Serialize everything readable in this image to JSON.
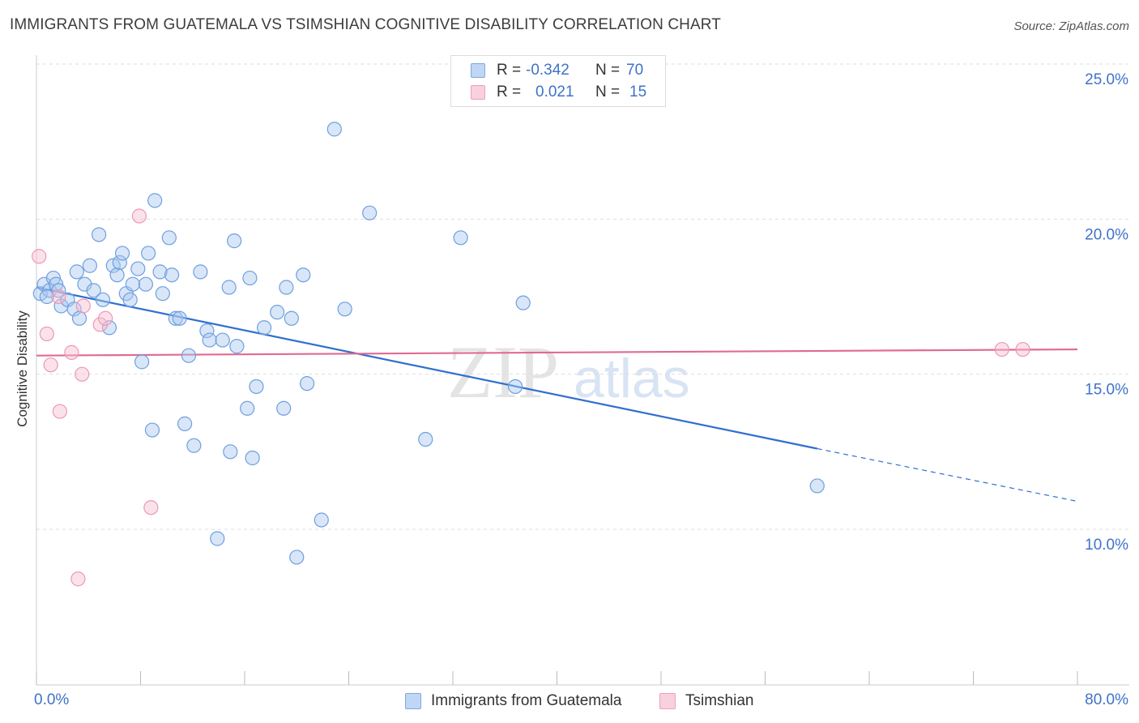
{
  "title": "IMMIGRANTS FROM GUATEMALA VS TSIMSHIAN COGNITIVE DISABILITY CORRELATION CHART",
  "source": "Source: ZipAtlas.com",
  "watermark": {
    "zip": "ZIP",
    "atlas": "atlas"
  },
  "colors": {
    "blue_fill": "#a9c7f0",
    "blue_stroke": "#6f9fdf",
    "blue_line": "#2f6fd0",
    "pink_fill": "#f7bfd0",
    "pink_stroke": "#ec98b4",
    "pink_line": "#e06b94",
    "axis_text": "#3f72c8",
    "grid": "#dddddd"
  },
  "stats": {
    "row1": {
      "r_label": "R =",
      "r_value": "-0.342",
      "n_label": "N =",
      "n_value": "70"
    },
    "row2": {
      "r_label": "R =",
      "r_value": "0.021",
      "n_label": "N =",
      "n_value": "15"
    }
  },
  "legend": {
    "series1": "Immigrants from Guatemala",
    "series2": "Tsimshian"
  },
  "chart_data": {
    "type": "scatter",
    "ylabel": "Cognitive Disability",
    "xlim": [
      0,
      80
    ],
    "ylim": [
      5,
      26.5
    ],
    "x_tick_labels": [
      {
        "value": 0,
        "label": "0.0%"
      },
      {
        "value": 80,
        "label": "80.0%"
      }
    ],
    "y_tick_labels": [
      {
        "value": 25,
        "label": "25.0%"
      },
      {
        "value": 20,
        "label": "20.0%"
      },
      {
        "value": 15,
        "label": "15.0%"
      },
      {
        "value": 10,
        "label": "10.0%"
      }
    ],
    "grid": true,
    "legend_position": "bottom",
    "series": [
      {
        "name": "Immigrants from Guatemala",
        "color": "#a9c7f0",
        "trend": {
          "x": [
            0,
            60
          ],
          "y": [
            17.8,
            12.6
          ],
          "dashed_to": [
            80,
            10.9
          ]
        },
        "points": [
          [
            0.3,
            17.6
          ],
          [
            0.6,
            17.9
          ],
          [
            1.0,
            17.7
          ],
          [
            1.3,
            18.1
          ],
          [
            1.5,
            17.9
          ],
          [
            1.9,
            17.2
          ],
          [
            2.4,
            17.4
          ],
          [
            2.9,
            17.1
          ],
          [
            3.3,
            16.8
          ],
          [
            3.7,
            17.9
          ],
          [
            4.1,
            18.5
          ],
          [
            4.4,
            17.7
          ],
          [
            4.8,
            19.5
          ],
          [
            5.1,
            17.4
          ],
          [
            5.6,
            16.5
          ],
          [
            5.9,
            18.5
          ],
          [
            6.2,
            18.2
          ],
          [
            6.4,
            18.6
          ],
          [
            6.6,
            18.9
          ],
          [
            6.9,
            17.6
          ],
          [
            7.2,
            17.4
          ],
          [
            7.4,
            17.9
          ],
          [
            7.8,
            18.4
          ],
          [
            8.1,
            15.4
          ],
          [
            8.4,
            17.9
          ],
          [
            8.6,
            18.9
          ],
          [
            8.9,
            13.2
          ],
          [
            9.1,
            20.6
          ],
          [
            9.5,
            18.3
          ],
          [
            9.7,
            17.6
          ],
          [
            10.2,
            19.4
          ],
          [
            10.4,
            18.2
          ],
          [
            10.7,
            16.8
          ],
          [
            11.0,
            16.8
          ],
          [
            11.4,
            13.4
          ],
          [
            11.7,
            15.6
          ],
          [
            12.1,
            12.7
          ],
          [
            12.6,
            18.3
          ],
          [
            13.1,
            16.4
          ],
          [
            13.3,
            16.1
          ],
          [
            13.9,
            9.7
          ],
          [
            14.3,
            16.1
          ],
          [
            14.8,
            17.8
          ],
          [
            14.9,
            12.5
          ],
          [
            15.2,
            19.3
          ],
          [
            15.4,
            15.9
          ],
          [
            16.2,
            13.9
          ],
          [
            16.4,
            18.1
          ],
          [
            16.6,
            12.3
          ],
          [
            16.9,
            14.6
          ],
          [
            17.5,
            16.5
          ],
          [
            18.5,
            17.0
          ],
          [
            19.0,
            13.9
          ],
          [
            19.2,
            17.8
          ],
          [
            19.6,
            16.8
          ],
          [
            20.0,
            9.1
          ],
          [
            20.5,
            18.2
          ],
          [
            20.8,
            14.7
          ],
          [
            21.9,
            10.3
          ],
          [
            22.9,
            22.9
          ],
          [
            23.7,
            17.1
          ],
          [
            25.6,
            20.2
          ],
          [
            29.9,
            12.9
          ],
          [
            32.6,
            19.4
          ],
          [
            36.8,
            14.6
          ],
          [
            37.4,
            17.3
          ],
          [
            60.0,
            11.4
          ],
          [
            1.7,
            17.7
          ],
          [
            3.1,
            18.3
          ],
          [
            0.8,
            17.5
          ]
        ]
      },
      {
        "name": "Tsimshian",
        "color": "#f7bfd0",
        "trend": {
          "x": [
            0,
            80
          ],
          "y": [
            15.6,
            15.8
          ]
        },
        "points": [
          [
            0.2,
            18.8
          ],
          [
            0.8,
            16.3
          ],
          [
            1.1,
            15.3
          ],
          [
            1.7,
            17.5
          ],
          [
            1.8,
            13.8
          ],
          [
            2.7,
            15.7
          ],
          [
            3.2,
            8.4
          ],
          [
            3.5,
            15.0
          ],
          [
            3.6,
            17.2
          ],
          [
            4.9,
            16.6
          ],
          [
            5.3,
            16.8
          ],
          [
            7.9,
            20.1
          ],
          [
            8.8,
            10.7
          ],
          [
            74.2,
            15.8
          ],
          [
            75.8,
            15.8
          ]
        ]
      }
    ]
  }
}
